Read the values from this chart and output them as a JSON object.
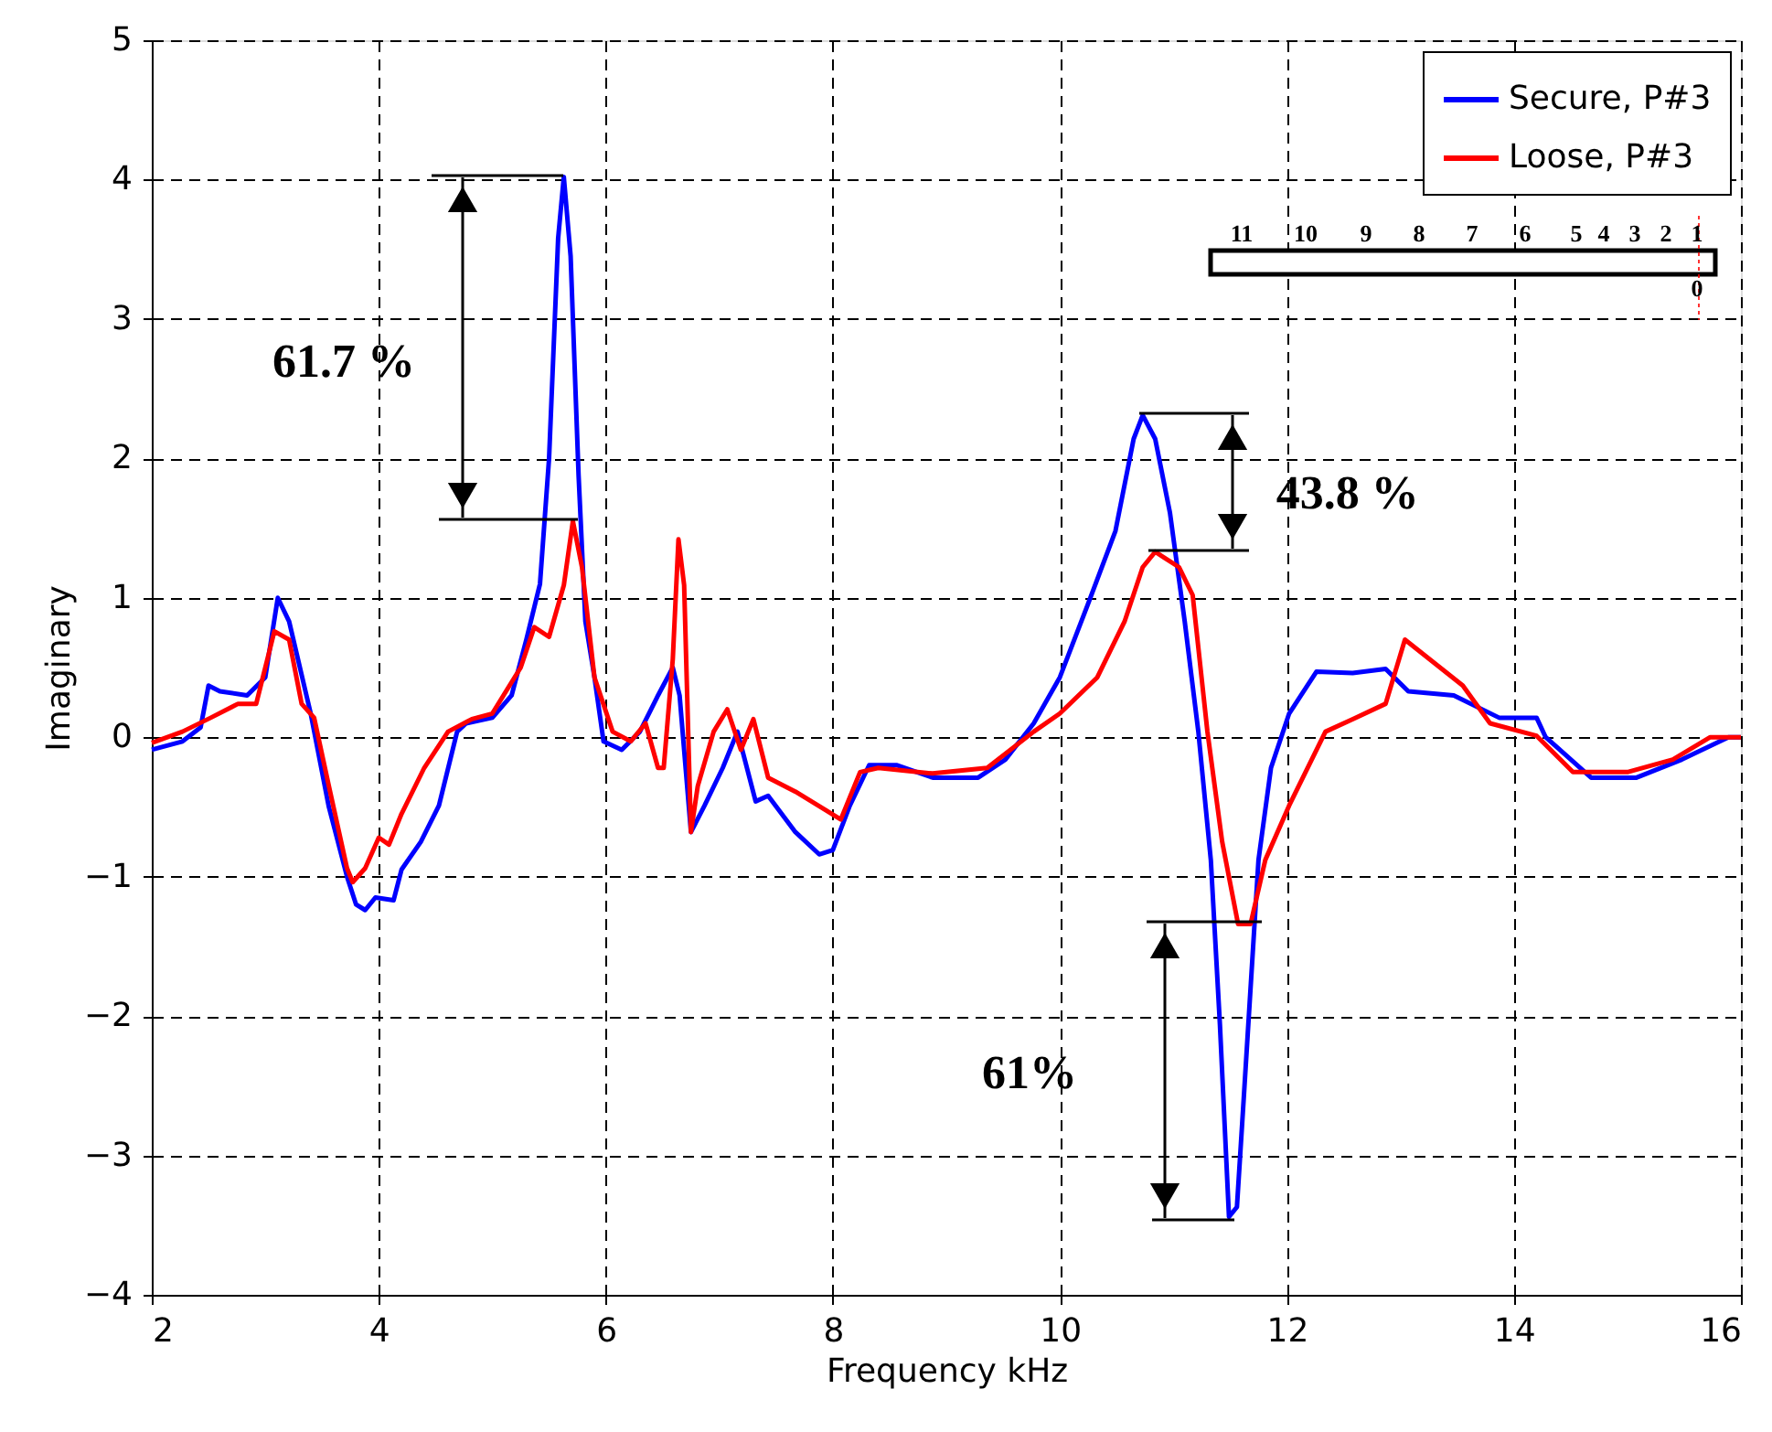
{
  "chart_data": {
    "type": "line",
    "xlabel": "Frequency  kHz",
    "ylabel": "Imaginary",
    "xlim": [
      2,
      16
    ],
    "ylim": [
      -4,
      5
    ],
    "xticks": [
      2,
      4,
      6,
      8,
      10,
      12,
      14,
      16
    ],
    "yticks": [
      -4,
      -3,
      -2,
      -1,
      0,
      1,
      2,
      3,
      4,
      5
    ],
    "grid": true,
    "legend": "top right",
    "line_style": "solid",
    "marker": "none",
    "series": [
      {
        "name": "Secure, P#3",
        "color": "#0000ff",
        "x": [
          2.0,
          2.27,
          2.43,
          2.5,
          2.6,
          2.84,
          3.0,
          3.11,
          3.21,
          3.4,
          3.56,
          3.72,
          3.8,
          3.88,
          3.97,
          4.13,
          4.2,
          4.37,
          4.53,
          4.69,
          4.77,
          5.0,
          5.17,
          5.3,
          5.42,
          5.5,
          5.58,
          5.63,
          5.69,
          5.76,
          5.82,
          5.9,
          5.98,
          6.14,
          6.3,
          6.46,
          6.59,
          6.65,
          6.75,
          6.87,
          7.03,
          7.16,
          7.32,
          7.43,
          7.67,
          7.88,
          8.0,
          8.15,
          8.32,
          8.56,
          8.88,
          9.28,
          9.52,
          9.77,
          10.0,
          10.25,
          10.49,
          10.65,
          10.73,
          10.84,
          10.97,
          11.1,
          11.22,
          11.33,
          11.41,
          11.49,
          11.56,
          11.62,
          11.75,
          11.86,
          12.02,
          12.26,
          12.58,
          12.87,
          13.07,
          13.47,
          13.87,
          14.2,
          14.28,
          14.68,
          15.08,
          15.48,
          15.89,
          16.0
        ],
        "values": [
          -0.09,
          -0.03,
          0.07,
          0.37,
          0.33,
          0.3,
          0.43,
          1.0,
          0.83,
          0.17,
          -0.5,
          -1.0,
          -1.2,
          -1.24,
          -1.15,
          -1.17,
          -0.95,
          -0.75,
          -0.49,
          0.04,
          0.1,
          0.14,
          0.3,
          0.7,
          1.1,
          2.0,
          3.58,
          4.02,
          3.45,
          1.88,
          0.83,
          0.43,
          -0.03,
          -0.09,
          0.04,
          0.3,
          0.5,
          0.3,
          -0.68,
          -0.49,
          -0.22,
          0.04,
          -0.46,
          -0.42,
          -0.68,
          -0.84,
          -0.81,
          -0.49,
          -0.2,
          -0.2,
          -0.29,
          -0.29,
          -0.16,
          0.1,
          0.43,
          0.96,
          1.48,
          2.14,
          2.31,
          2.14,
          1.61,
          0.83,
          0.04,
          -0.88,
          -2.06,
          -3.44,
          -3.37,
          -2.59,
          -0.88,
          -0.22,
          0.17,
          0.47,
          0.46,
          0.49,
          0.33,
          0.3,
          0.14,
          0.14,
          0.0,
          -0.29,
          -0.29,
          -0.16,
          0.0,
          0.0
        ]
      },
      {
        "name": "Loose, P#3",
        "color": "#ff0000",
        "x": [
          2.0,
          2.27,
          2.52,
          2.76,
          2.92,
          3.08,
          3.21,
          3.32,
          3.43,
          3.56,
          3.72,
          3.77,
          3.88,
          4.0,
          4.09,
          4.2,
          4.4,
          4.61,
          4.82,
          5.0,
          5.25,
          5.37,
          5.5,
          5.63,
          5.71,
          5.79,
          5.9,
          6.06,
          6.22,
          6.35,
          6.46,
          6.51,
          6.59,
          6.64,
          6.69,
          6.75,
          6.81,
          6.95,
          7.07,
          7.19,
          7.3,
          7.43,
          7.67,
          7.91,
          8.07,
          8.24,
          8.4,
          8.88,
          9.36,
          9.77,
          10.0,
          10.33,
          10.57,
          10.73,
          10.84,
          11.05,
          11.17,
          11.3,
          11.43,
          11.57,
          11.68,
          11.81,
          12.02,
          12.34,
          12.58,
          12.87,
          13.04,
          13.55,
          13.79,
          14.2,
          14.52,
          15.0,
          15.4,
          15.73,
          16.0
        ],
        "values": [
          -0.04,
          0.04,
          0.14,
          0.24,
          0.24,
          0.76,
          0.7,
          0.24,
          0.14,
          -0.35,
          -0.94,
          -1.04,
          -0.94,
          -0.72,
          -0.77,
          -0.55,
          -0.22,
          0.04,
          0.13,
          0.17,
          0.5,
          0.79,
          0.72,
          1.09,
          1.55,
          1.22,
          0.43,
          0.04,
          -0.03,
          0.1,
          -0.22,
          -0.22,
          0.56,
          1.42,
          1.09,
          -0.68,
          -0.35,
          0.04,
          0.2,
          -0.09,
          0.13,
          -0.29,
          -0.39,
          -0.51,
          -0.59,
          -0.25,
          -0.22,
          -0.26,
          -0.22,
          0.04,
          0.17,
          0.43,
          0.83,
          1.22,
          1.33,
          1.22,
          1.02,
          0.04,
          -0.75,
          -1.34,
          -1.34,
          -0.88,
          -0.49,
          0.04,
          0.13,
          0.24,
          0.7,
          0.37,
          0.1,
          0.01,
          -0.25,
          -0.25,
          -0.16,
          0.0,
          0.0
        ]
      }
    ],
    "annotations": [
      "61.7 %",
      {
        "text": "43.8 %",
        "x": 10.73,
        "y": 2.31
      },
      "61%",
      "11",
      "10",
      "9",
      "8",
      "7",
      "6",
      "5",
      "4",
      "3",
      "2",
      "1",
      "0"
    ]
  }
}
